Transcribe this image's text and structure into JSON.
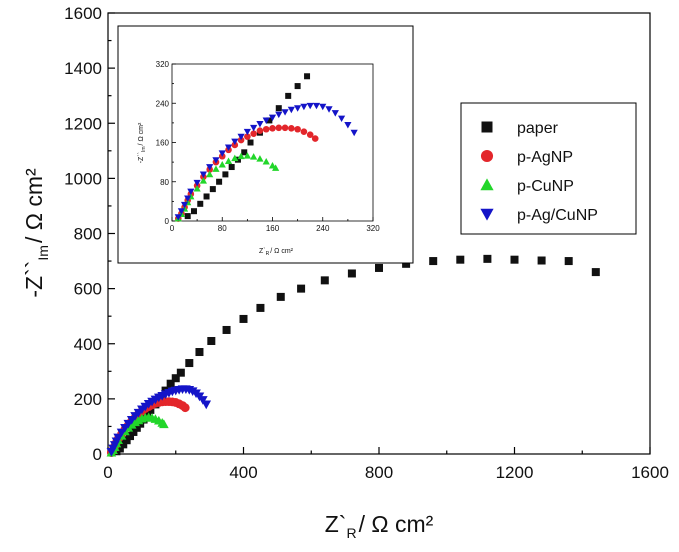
{
  "chart_data": {
    "type": "scatter",
    "main": {
      "xlabel": {
        "pre": "Z`",
        "sub": "R",
        "post": "/ Ω cm²"
      },
      "ylabel": {
        "pre": "-Z``",
        "sub": "Im",
        "post": "/ Ω cm²"
      },
      "xlim": [
        0,
        1600
      ],
      "ylim": [
        0,
        1600
      ],
      "xticks": [
        0,
        400,
        800,
        1200,
        1600
      ],
      "yticks": [
        0,
        200,
        400,
        600,
        800,
        1000,
        1200,
        1400,
        1600
      ],
      "xtick_labels": [
        "0",
        "400",
        "800",
        "1200",
        "1600"
      ],
      "ytick_labels": [
        "0",
        "200",
        "400",
        "600",
        "800",
        "1000",
        "1200",
        "1400",
        "1600"
      ],
      "legend_position": "right"
    },
    "inset": {
      "xlabel": {
        "pre": "Z`",
        "sub": "R",
        "post": "/ Ω cm²"
      },
      "ylabel": {
        "pre": "-Z``",
        "sub": "Im",
        "post": "/ Ω cm²"
      },
      "xlim": [
        0,
        320
      ],
      "ylim": [
        0,
        320
      ],
      "xticks": [
        0,
        80,
        160,
        240,
        320
      ],
      "yticks": [
        0,
        80,
        160,
        240,
        320
      ],
      "xtick_labels": [
        "0",
        "80",
        "160",
        "240",
        "320"
      ],
      "ytick_labels": [
        "0",
        "80",
        "160",
        "240",
        "320"
      ]
    },
    "series": [
      {
        "name": "paper",
        "marker": "square",
        "color": "#111111",
        "x": [
          25,
          35,
          45,
          55,
          65,
          75,
          85,
          95,
          105,
          115,
          125,
          140,
          155,
          170,
          185,
          200,
          215,
          240,
          270,
          305,
          350,
          400,
          450,
          510,
          570,
          640,
          720,
          800,
          880,
          960,
          1040,
          1120,
          1200,
          1280,
          1360,
          1440
        ],
        "y": [
          10,
          20,
          35,
          50,
          65,
          80,
          95,
          110,
          125,
          140,
          160,
          180,
          205,
          230,
          255,
          275,
          295,
          330,
          370,
          410,
          450,
          490,
          530,
          570,
          600,
          630,
          655,
          675,
          690,
          700,
          705,
          708,
          705,
          702,
          700,
          660
        ]
      },
      {
        "name": "p-AgNP",
        "marker": "circle",
        "color": "#e3262b",
        "x": [
          10,
          15,
          20,
          25,
          30,
          40,
          50,
          60,
          70,
          80,
          90,
          100,
          110,
          120,
          130,
          140,
          150,
          160,
          170,
          180,
          190,
          200,
          210,
          220,
          228
        ],
        "y": [
          5,
          15,
          28,
          42,
          55,
          72,
          90,
          105,
          120,
          132,
          145,
          155,
          165,
          172,
          178,
          184,
          187,
          189,
          190,
          190,
          189,
          187,
          182,
          176,
          168
        ]
      },
      {
        "name": "p-CuNP",
        "marker": "triangle-up",
        "color": "#22d62a",
        "x": [
          10,
          15,
          20,
          25,
          30,
          40,
          50,
          60,
          70,
          80,
          90,
          100,
          110,
          120,
          130,
          140,
          150,
          160,
          165
        ],
        "y": [
          5,
          14,
          25,
          38,
          50,
          66,
          82,
          95,
          106,
          115,
          122,
          128,
          132,
          133,
          131,
          127,
          121,
          113,
          108
        ]
      },
      {
        "name": "p-Ag/CuNP",
        "marker": "triangle-down",
        "color": "#1414c8",
        "x": [
          10,
          15,
          20,
          25,
          30,
          40,
          50,
          60,
          70,
          80,
          90,
          100,
          110,
          120,
          130,
          140,
          150,
          160,
          170,
          180,
          190,
          200,
          210,
          220,
          230,
          240,
          250,
          260,
          270,
          280,
          290
        ],
        "y": [
          8,
          20,
          33,
          46,
          60,
          78,
          95,
          110,
          124,
          138,
          150,
          162,
          172,
          182,
          190,
          198,
          205,
          211,
          217,
          222,
          227,
          230,
          233,
          235,
          235,
          233,
          228,
          220,
          209,
          196,
          180
        ]
      }
    ]
  }
}
